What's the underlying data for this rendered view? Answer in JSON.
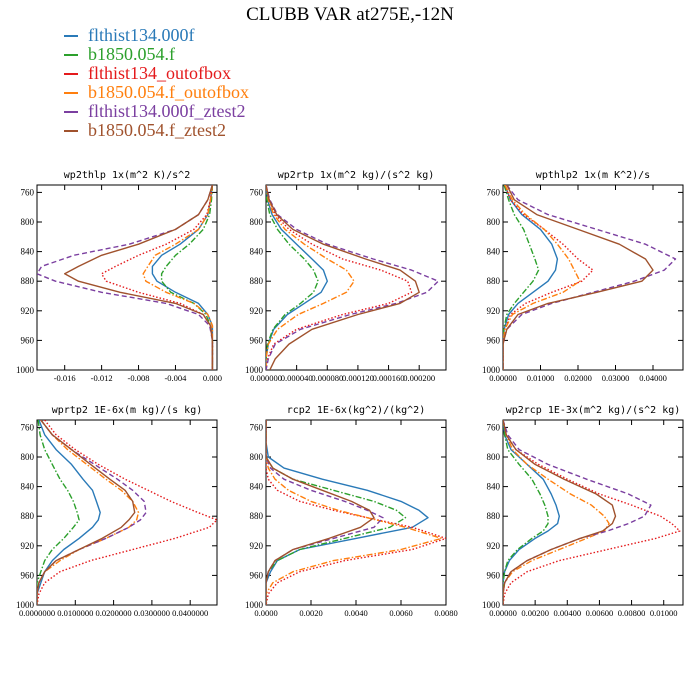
{
  "title": "CLUBB VAR at275E,-12N",
  "series": [
    {
      "name": "flthist134.000f",
      "color": "#2a7ab8",
      "dash": "solid"
    },
    {
      "name": "b1850.054.f",
      "color": "#2ca02c",
      "dash": "dashdot"
    },
    {
      "name": "flthist134_outofbox",
      "color": "#e41a1c",
      "dash": "dotted"
    },
    {
      "name": "b1850.054.f_outofbox",
      "color": "#ff7f0e",
      "dash": "dashdot"
    },
    {
      "name": "flthist134.000f_ztest2",
      "color": "#7b3fa0",
      "dash": "dashed"
    },
    {
      "name": "b1850.054.f_ztest2",
      "color": "#a0522d",
      "dash": "solid"
    }
  ],
  "chart_data": [
    {
      "type": "line",
      "title": "wp2thlp  1x(m^2 K)/s^2",
      "ylim": [
        1000,
        750
      ],
      "yticks": [
        760,
        800,
        840,
        880,
        920,
        960,
        1000
      ],
      "xlim": [
        -0.019,
        0.0005
      ],
      "xticks": [
        -0.016,
        -0.012,
        -0.008,
        -0.004,
        0.0
      ],
      "xticklabels": [
        "-0.016",
        "-0.012",
        "-0.008",
        "-0.004",
        "0.000"
      ],
      "y": [
        750,
        770,
        790,
        810,
        830,
        845,
        860,
        870,
        880,
        895,
        910,
        925,
        940,
        960,
        980,
        1000
      ],
      "series": [
        {
          "values": [
            0,
            -0.0002,
            -0.0005,
            -0.0015,
            -0.0035,
            -0.0055,
            -0.0065,
            -0.0065,
            -0.006,
            -0.004,
            -0.0015,
            -0.0005,
            0,
            0,
            0,
            0
          ]
        },
        {
          "values": [
            0,
            -0.0001,
            -0.0003,
            -0.001,
            -0.0025,
            -0.004,
            -0.005,
            -0.0055,
            -0.0055,
            -0.0045,
            -0.002,
            -0.0007,
            -0.0002,
            0,
            0,
            0
          ]
        },
        {
          "values": [
            0,
            -0.0002,
            -0.0006,
            -0.002,
            -0.005,
            -0.008,
            -0.0105,
            -0.012,
            -0.0115,
            -0.008,
            -0.0035,
            -0.001,
            -0.0002,
            0,
            0,
            0
          ]
        },
        {
          "values": [
            0,
            -0.0002,
            -0.0005,
            -0.0015,
            -0.004,
            -0.0062,
            -0.007,
            -0.0075,
            -0.0072,
            -0.005,
            -0.002,
            -0.0005,
            0,
            0,
            0,
            0
          ]
        },
        {
          "values": [
            0,
            -0.0005,
            -0.0015,
            -0.004,
            -0.009,
            -0.015,
            -0.0185,
            -0.019,
            -0.017,
            -0.012,
            -0.005,
            -0.0015,
            -0.0003,
            0,
            0,
            0
          ]
        },
        {
          "values": [
            0,
            -0.0005,
            -0.0015,
            -0.004,
            -0.008,
            -0.012,
            -0.0145,
            -0.016,
            -0.0145,
            -0.01,
            -0.004,
            -0.001,
            -0.0002,
            0,
            0,
            0
          ]
        }
      ]
    },
    {
      "type": "line",
      "title": "wp2rtp  1x(m^2 kg)/(s^2 kg)",
      "ylim": [
        1000,
        750
      ],
      "yticks": [
        760,
        800,
        840,
        880,
        920,
        960,
        1000
      ],
      "xlim": [
        0.0,
        0.000235
      ],
      "xticks": [
        0.0,
        4e-05,
        8e-05,
        0.00012,
        0.00016,
        0.0002
      ],
      "xticklabels": [
        "0.000000",
        "0.000040",
        "0.000080",
        "0.000120",
        "0.000160",
        "0.000200"
      ],
      "y": [
        750,
        770,
        790,
        810,
        830,
        850,
        865,
        880,
        895,
        910,
        925,
        945,
        965,
        985,
        1000
      ],
      "series": [
        {
          "values": [
            0,
            2e-06,
            8e-06,
            2e-05,
            4e-05,
            6e-05,
            7.5e-05,
            8e-05,
            7.2e-05,
            5e-05,
            2.8e-05,
            1e-05,
            3e-06,
            0,
            0
          ]
        },
        {
          "values": [
            0,
            1e-06,
            5e-06,
            1.5e-05,
            3e-05,
            5e-05,
            6.2e-05,
            6.8e-05,
            6.2e-05,
            4.5e-05,
            2.5e-05,
            9e-06,
            2e-06,
            0,
            0
          ]
        },
        {
          "values": [
            0,
            4e-06,
            1.2e-05,
            3e-05,
            6e-05,
            0.0001,
            0.00015,
            0.000185,
            0.00019,
            0.00016,
            0.0001,
            4e-05,
            1e-05,
            2e-06,
            0
          ]
        },
        {
          "values": [
            0,
            3e-06,
            1e-05,
            2.5e-05,
            5e-05,
            8e-05,
            0.000105,
            0.000115,
            0.000105,
            7.5e-05,
            4.2e-05,
            1.5e-05,
            3e-06,
            0,
            0
          ]
        },
        {
          "values": [
            0,
            5e-06,
            1.5e-05,
            4e-05,
            8e-05,
            0.00014,
            0.00019,
            0.000225,
            0.00021,
            0.00017,
            0.00011,
            4.5e-05,
            1.2e-05,
            3e-06,
            0
          ]
        },
        {
          "values": [
            0,
            4e-06,
            1.4e-05,
            3.5e-05,
            7.5e-05,
            0.00013,
            0.000175,
            0.000195,
            0.0002,
            0.000175,
            0.00012,
            6e-05,
            3e-05,
            1.2e-05,
            5e-06
          ]
        }
      ]
    },
    {
      "type": "line",
      "title": "wpthlp2  1x(m K^2)/s",
      "ylim": [
        1000,
        750
      ],
      "yticks": [
        760,
        800,
        840,
        880,
        920,
        960,
        1000
      ],
      "xlim": [
        0.0,
        0.048
      ],
      "xticks": [
        0.0,
        0.01,
        0.02,
        0.03,
        0.04
      ],
      "xticklabels": [
        "0.00000",
        "0.01000",
        "0.02000",
        "0.03000",
        "0.04000"
      ],
      "y": [
        750,
        770,
        790,
        810,
        830,
        850,
        865,
        880,
        895,
        910,
        925,
        945,
        965,
        985,
        1000
      ],
      "series": [
        {
          "values": [
            0.0005,
            0.002,
            0.005,
            0.01,
            0.013,
            0.0145,
            0.014,
            0.012,
            0.008,
            0.004,
            0.0015,
            0.0003,
            0,
            0,
            0
          ]
        },
        {
          "values": [
            0.0003,
            0.0015,
            0.003,
            0.0055,
            0.007,
            0.0085,
            0.0095,
            0.008,
            0.0055,
            0.003,
            0.001,
            0.0002,
            0,
            0,
            0
          ]
        },
        {
          "values": [
            0.0005,
            0.002,
            0.0055,
            0.011,
            0.016,
            0.02,
            0.024,
            0.021,
            0.013,
            0.006,
            0.002,
            0.0005,
            0,
            0,
            0
          ]
        },
        {
          "values": [
            0.0005,
            0.0025,
            0.006,
            0.011,
            0.0145,
            0.0175,
            0.019,
            0.0205,
            0.016,
            0.008,
            0.0025,
            0.0005,
            0,
            0,
            0
          ]
        },
        {
          "values": [
            0.001,
            0.004,
            0.012,
            0.025,
            0.038,
            0.046,
            0.043,
            0.035,
            0.024,
            0.013,
            0.005,
            0.001,
            0,
            0,
            0
          ]
        },
        {
          "values": [
            0.001,
            0.003,
            0.009,
            0.02,
            0.031,
            0.038,
            0.04,
            0.037,
            0.025,
            0.012,
            0.004,
            0.001,
            0,
            0,
            0
          ]
        }
      ]
    },
    {
      "type": "line",
      "title": "wprtp2  1E-6x(m kg)/(s kg)",
      "ylim": [
        1000,
        750
      ],
      "yticks": [
        760,
        800,
        840,
        880,
        920,
        960,
        1000
      ],
      "xlim": [
        0.0,
        0.047
      ],
      "xticks": [
        0.0,
        0.01,
        0.02,
        0.03,
        0.04
      ],
      "xticklabels": [
        "0.0000000",
        "0.0100000",
        "0.0200000",
        "0.0300000",
        "0.0400000"
      ],
      "y": [
        750,
        770,
        790,
        810,
        830,
        845,
        860,
        875,
        885,
        895,
        910,
        925,
        940,
        955,
        970,
        985,
        1000
      ],
      "series": [
        {
          "values": [
            0.0005,
            0.002,
            0.005,
            0.009,
            0.012,
            0.0145,
            0.0155,
            0.0165,
            0.016,
            0.0145,
            0.011,
            0.007,
            0.004,
            0.002,
            0.001,
            0,
            0
          ]
        },
        {
          "values": [
            0.0003,
            0.0008,
            0.002,
            0.004,
            0.006,
            0.008,
            0.0095,
            0.0105,
            0.011,
            0.0095,
            0.007,
            0.004,
            0.002,
            0.001,
            0,
            0,
            0
          ]
        },
        {
          "values": [
            0.002,
            0.005,
            0.01,
            0.016,
            0.023,
            0.029,
            0.035,
            0.042,
            0.047,
            0.045,
            0.036,
            0.025,
            0.014,
            0.006,
            0.002,
            0.0005,
            0
          ]
        },
        {
          "values": [
            0.001,
            0.004,
            0.008,
            0.013,
            0.018,
            0.022,
            0.025,
            0.0265,
            0.026,
            0.024,
            0.018,
            0.011,
            0.006,
            0.002,
            0.0005,
            0,
            0
          ]
        },
        {
          "values": [
            0.001,
            0.004,
            0.009,
            0.015,
            0.021,
            0.025,
            0.028,
            0.0285,
            0.027,
            0.024,
            0.018,
            0.011,
            0.005,
            0.002,
            0.0005,
            0,
            0
          ]
        },
        {
          "values": [
            0.001,
            0.004,
            0.009,
            0.014,
            0.019,
            0.023,
            0.025,
            0.0255,
            0.024,
            0.022,
            0.017,
            0.011,
            0.005,
            0.002,
            0.0005,
            0,
            0
          ]
        }
      ]
    },
    {
      "type": "line",
      "title": "rcp2  1E-6x(kg^2)/(kg^2)",
      "ylim": [
        1000,
        750
      ],
      "yticks": [
        760,
        800,
        840,
        880,
        920,
        960,
        1000
      ],
      "xlim": [
        0.0,
        0.008
      ],
      "xticks": [
        0.0,
        0.002,
        0.004,
        0.006,
        0.008
      ],
      "xticklabels": [
        "0.0000",
        "0.0020",
        "0.0040",
        "0.0060",
        "0.0080"
      ],
      "y": [
        750,
        780,
        800,
        815,
        830,
        845,
        860,
        872,
        882,
        895,
        910,
        925,
        940,
        955,
        970,
        985,
        1000
      ],
      "series": [
        {
          "values": [
            0,
            0,
            0.0001,
            0.0008,
            0.0025,
            0.0045,
            0.006,
            0.0068,
            0.0072,
            0.0065,
            0.004,
            0.0015,
            0.0005,
            0.0002,
            0,
            0,
            0
          ]
        },
        {
          "values": [
            0,
            0,
            0,
            0.0003,
            0.0012,
            0.003,
            0.0048,
            0.0058,
            0.0062,
            0.0055,
            0.0035,
            0.0015,
            0.0005,
            0.0001,
            0,
            0,
            0
          ]
        },
        {
          "values": [
            0,
            0,
            0,
            0,
            0.0001,
            0.0005,
            0.0015,
            0.003,
            0.0045,
            0.0065,
            0.008,
            0.0065,
            0.0035,
            0.0015,
            0.0005,
            0.0001,
            0
          ]
        },
        {
          "values": [
            0,
            0,
            0,
            0.0001,
            0.0004,
            0.001,
            0.002,
            0.0032,
            0.0045,
            0.0062,
            0.0078,
            0.006,
            0.003,
            0.0012,
            0.0003,
            0,
            0
          ]
        },
        {
          "values": [
            0,
            0,
            0,
            0.0002,
            0.0008,
            0.002,
            0.0035,
            0.0045,
            0.0052,
            0.0048,
            0.003,
            0.0012,
            0.0004,
            0.0001,
            0,
            0,
            0
          ]
        },
        {
          "values": [
            0,
            0,
            0,
            0.0003,
            0.0012,
            0.0025,
            0.0038,
            0.0046,
            0.0048,
            0.0042,
            0.0028,
            0.0012,
            0.0004,
            0.0001,
            0,
            0,
            0
          ]
        }
      ]
    },
    {
      "type": "line",
      "title": "wp2rcp  1E-3x(m^2 kg)/(s^2 kg)",
      "ylim": [
        1000,
        750
      ],
      "yticks": [
        760,
        800,
        840,
        880,
        920,
        960,
        1000
      ],
      "xlim": [
        0.0,
        0.0112
      ],
      "xticks": [
        0.0,
        0.002,
        0.004,
        0.006,
        0.008,
        0.01
      ],
      "xticklabels": [
        "0.00000",
        "0.00200",
        "0.00400",
        "0.00600",
        "0.00800",
        "0.01000"
      ],
      "y": [
        750,
        770,
        790,
        810,
        830,
        850,
        865,
        880,
        890,
        900,
        910,
        925,
        940,
        955,
        970,
        985,
        1000
      ],
      "series": [
        {
          "values": [
            0,
            0.0001,
            0.0005,
            0.0015,
            0.0025,
            0.003,
            0.0033,
            0.0035,
            0.0034,
            0.0028,
            0.002,
            0.001,
            0.0004,
            0.0001,
            0,
            0,
            0
          ]
        },
        {
          "values": [
            0,
            0.0001,
            0.0003,
            0.001,
            0.0018,
            0.0023,
            0.0026,
            0.0028,
            0.0028,
            0.0025,
            0.0018,
            0.0009,
            0.0003,
            0.0001,
            0,
            0,
            0
          ]
        },
        {
          "values": [
            0,
            0.0002,
            0.0008,
            0.0022,
            0.004,
            0.006,
            0.008,
            0.0098,
            0.0105,
            0.011,
            0.0095,
            0.0065,
            0.0035,
            0.0015,
            0.0005,
            0.0001,
            0
          ]
        },
        {
          "values": [
            0,
            0.0002,
            0.0006,
            0.0015,
            0.0028,
            0.0042,
            0.0055,
            0.0063,
            0.0066,
            0.0063,
            0.0052,
            0.0035,
            0.0018,
            0.0006,
            0.0001,
            0,
            0
          ]
        },
        {
          "values": [
            0,
            0.0003,
            0.001,
            0.0028,
            0.0052,
            0.0078,
            0.0092,
            0.0088,
            0.0078,
            0.0065,
            0.0048,
            0.003,
            0.0015,
            0.0005,
            0.0001,
            0,
            0
          ]
        },
        {
          "values": [
            0,
            0.0002,
            0.0008,
            0.002,
            0.0038,
            0.0058,
            0.0068,
            0.007,
            0.0068,
            0.0062,
            0.0048,
            0.003,
            0.0015,
            0.0005,
            0.0001,
            0,
            0
          ]
        }
      ]
    }
  ]
}
